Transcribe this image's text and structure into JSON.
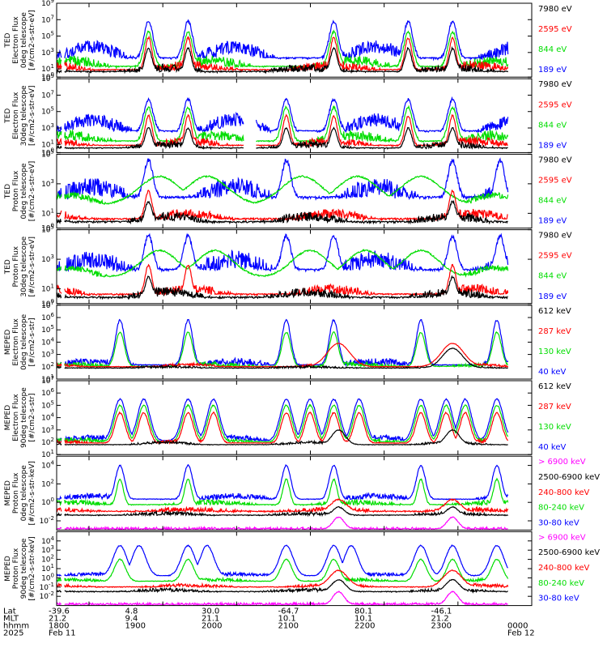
{
  "chart_data": {
    "type": "line",
    "grid": false,
    "x_ticks": [
      "1800",
      "1900",
      "2000",
      "2100",
      "2200",
      "2300",
      "0000"
    ],
    "footer": {
      "row_labels": [
        "Lat",
        "MLT",
        "hhmm",
        "2025"
      ],
      "columns": [
        [
          "-39.6",
          "21.2",
          "1800",
          "Feb 11"
        ],
        [
          "4.8",
          "9.4",
          "1900",
          ""
        ],
        [
          "30.0",
          "21.1",
          "2000",
          ""
        ],
        [
          "-64.7",
          "10.1",
          "2100",
          ""
        ],
        [
          "80.1",
          "10.1",
          "2200",
          ""
        ],
        [
          "-46.1",
          "21.2",
          "2300",
          ""
        ],
        [
          "",
          "",
          "0000",
          "Feb 12"
        ]
      ]
    },
    "panels": [
      {
        "ylabel": [
          "TED",
          "Electron Flux",
          "0deg telescope",
          "[#/cm2-s-str-eV]"
        ],
        "ylim_exp": [
          0,
          9
        ],
        "yticks": [
          0,
          1,
          3,
          5,
          7,
          9
        ],
        "legend": [
          {
            "name": "7980 eV",
            "color": "#000000"
          },
          {
            "name": "2595 eV",
            "color": "#ff0000"
          },
          {
            "name": "844 eV",
            "color": "#00dd00"
          },
          {
            "name": "189 eV",
            "color": "#0000ff"
          }
        ],
        "series": [
          {
            "color": "#0000ff",
            "base": 2.2,
            "amp": 1.5,
            "peaks": [
              5.8,
              8.3,
              17.5,
              22.2,
              25.0
            ],
            "peak_h": 6.8,
            "width": 0.4,
            "noise": 0.8
          },
          {
            "color": "#00dd00",
            "base": 1.2,
            "amp": 0.8,
            "peaks": [
              5.8,
              8.3,
              17.5,
              22.2,
              25.0
            ],
            "peak_h": 5.5,
            "width": 0.4,
            "noise": 0.6
          },
          {
            "color": "#ff0000",
            "base": 0.8,
            "amp": 0.6,
            "peaks": [
              5.8,
              8.3,
              17.5,
              22.2,
              25.0
            ],
            "peak_h": 4.8,
            "width": 0.3,
            "noise": 0.6
          },
          {
            "color": "#000000",
            "base": 0.6,
            "amp": 0.5,
            "peaks": [
              5.8,
              8.3,
              17.5,
              22.2,
              25.0
            ],
            "peak_h": 3.5,
            "width": 0.3,
            "noise": 0.5
          }
        ]
      },
      {
        "ylabel": [
          "TED",
          "Electron Flux",
          "30deg telescope",
          "[#/cm2-s-str-eV]"
        ],
        "ylim_exp": [
          0,
          9
        ],
        "yticks": [
          0,
          1,
          3,
          5,
          7,
          9
        ],
        "legend": [
          {
            "name": "7980 eV",
            "color": "#000000"
          },
          {
            "name": "2595 eV",
            "color": "#ff0000"
          },
          {
            "name": "844 eV",
            "color": "#00dd00"
          },
          {
            "name": "189 eV",
            "color": "#0000ff"
          }
        ],
        "series": [
          {
            "color": "#0000ff",
            "base": 2.5,
            "amp": 1.5,
            "peaks": [
              5.8,
              8.3,
              14.5,
              17.5,
              22.2,
              25.0
            ],
            "peak_h": 6.5,
            "width": 0.4,
            "noise": 0.8
          },
          {
            "color": "#00dd00",
            "base": 1.3,
            "amp": 0.8,
            "peaks": [
              5.8,
              8.3,
              14.5,
              17.5,
              22.2,
              25.0
            ],
            "peak_h": 5.5,
            "width": 0.4,
            "noise": 0.6
          },
          {
            "color": "#ff0000",
            "base": 0.8,
            "amp": 0.6,
            "peaks": [
              5.8,
              8.3,
              14.5,
              17.5,
              22.2,
              25.0
            ],
            "peak_h": 4.5,
            "width": 0.3,
            "noise": 0.5
          },
          {
            "color": "#000000",
            "base": 0.5,
            "amp": 0.5,
            "peaks": [
              5.8,
              8.3,
              14.5,
              17.5,
              22.2,
              25.0
            ],
            "peak_h": 3.0,
            "width": 0.3,
            "noise": 0.4
          }
        ]
      },
      {
        "ylabel": [
          "TED",
          "Proton Flux",
          "0deg telescope",
          "[#/cm2-s-str-eV]"
        ],
        "ylim_exp": [
          0,
          5
        ],
        "yticks": [
          0,
          1,
          3,
          5
        ],
        "legend": [
          {
            "name": "7980 eV",
            "color": "#000000"
          },
          {
            "name": "2595 eV",
            "color": "#ff0000"
          },
          {
            "name": "844 eV",
            "color": "#00dd00"
          },
          {
            "name": "189 eV",
            "color": "#0000ff"
          }
        ],
        "series": [
          {
            "color": "#0000ff",
            "base": 2.0,
            "amp": 0.8,
            "peaks": [
              5.8,
              14.5,
              25.0,
              28.0
            ],
            "peak_h": 4.6,
            "width": 0.4,
            "noise": 0.6
          },
          {
            "color": "#00dd00",
            "base": 1.6,
            "amp": 0.6,
            "peaks": [
              6.5,
              9.5,
              15.5,
              19.0,
              23.0
            ],
            "peak_h": 3.5,
            "width": 1.8,
            "noise": 0.2
          },
          {
            "color": "#ff0000",
            "base": 0.6,
            "amp": 0.4,
            "peaks": [
              5.8,
              25.0
            ],
            "peak_h": 2.5,
            "width": 0.3,
            "noise": 0.3
          },
          {
            "color": "#000000",
            "base": 0.4,
            "amp": 0.4,
            "peaks": [
              5.8,
              25.0
            ],
            "peak_h": 1.8,
            "width": 0.3,
            "noise": 0.3
          }
        ]
      },
      {
        "ylabel": [
          "TED",
          "Proton Flux",
          "30deg telescope",
          "[#/cm2-s-str-eV]"
        ],
        "ylim_exp": [
          0,
          5
        ],
        "yticks": [
          0,
          1,
          3,
          5
        ],
        "legend": [
          {
            "name": "7980 eV",
            "color": "#000000"
          },
          {
            "name": "2595 eV",
            "color": "#ff0000"
          },
          {
            "name": "844 eV",
            "color": "#00dd00"
          },
          {
            "name": "189 eV",
            "color": "#0000ff"
          }
        ],
        "series": [
          {
            "color": "#0000ff",
            "base": 2.2,
            "amp": 0.8,
            "peaks": [
              5.8,
              8.3,
              14.5,
              17.5,
              25.0,
              28.0
            ],
            "peak_h": 4.6,
            "width": 0.4,
            "noise": 0.6
          },
          {
            "color": "#00dd00",
            "base": 1.8,
            "amp": 0.6,
            "peaks": [
              6.5,
              10.0,
              16.0,
              19.5,
              23.0
            ],
            "peak_h": 3.6,
            "width": 1.6,
            "noise": 0.2
          },
          {
            "color": "#ff0000",
            "base": 0.6,
            "amp": 0.4,
            "peaks": [
              5.8,
              8.3,
              25.0
            ],
            "peak_h": 2.6,
            "width": 0.3,
            "noise": 0.3
          },
          {
            "color": "#000000",
            "base": 0.4,
            "amp": 0.4,
            "peaks": [
              5.8,
              25.0
            ],
            "peak_h": 1.8,
            "width": 0.3,
            "noise": 0.3
          }
        ]
      },
      {
        "ylabel": [
          "MEPED",
          "Electron Flux",
          "0deg telescope",
          "[#/cm2-s-str]"
        ],
        "ylim_exp": [
          1,
          7
        ],
        "yticks": [
          1,
          2,
          3,
          4,
          5,
          6,
          7
        ],
        "legend": [
          {
            "name": "612 keV",
            "color": "#000000"
          },
          {
            "name": "287 keV",
            "color": "#ff0000"
          },
          {
            "name": "130 keV",
            "color": "#00dd00"
          },
          {
            "name": "40 keV",
            "color": "#0000ff"
          }
        ],
        "series": [
          {
            "color": "#0000ff",
            "base": 2.1,
            "amp": 0.3,
            "peaks": [
              4.0,
              8.3,
              14.5,
              17.5,
              23.0,
              27.8
            ],
            "peak_h": 5.8,
            "width": 0.4,
            "noise": 0.3
          },
          {
            "color": "#00dd00",
            "base": 2.0,
            "amp": 0.2,
            "peaks": [
              4.0,
              8.3,
              14.5,
              17.5,
              23.0,
              27.8
            ],
            "peak_h": 4.8,
            "width": 0.4,
            "noise": 0.2
          },
          {
            "color": "#ff0000",
            "base": 2.0,
            "amp": 0.2,
            "peaks": [
              17.8,
              25.0
            ],
            "peak_h": 3.9,
            "width": 1.0,
            "noise": 0.1
          },
          {
            "color": "#000000",
            "base": 1.9,
            "amp": 0.1,
            "peaks": [
              25.0
            ],
            "peak_h": 3.5,
            "width": 0.9,
            "noise": 0.1
          }
        ]
      },
      {
        "ylabel": [
          "MEPED",
          "Electron Flux",
          "90deg telescope",
          "[#/cm2-s-str]"
        ],
        "ylim_exp": [
          1,
          7
        ],
        "yticks": [
          1,
          2,
          3,
          4,
          5,
          6,
          7
        ],
        "legend": [
          {
            "name": "612 keV",
            "color": "#000000"
          },
          {
            "name": "287 keV",
            "color": "#ff0000"
          },
          {
            "name": "130 keV",
            "color": "#00dd00"
          },
          {
            "name": "40 keV",
            "color": "#0000ff"
          }
        ],
        "series": [
          {
            "color": "#0000ff",
            "base": 2.1,
            "amp": 0.3,
            "peaks": [
              4.0,
              5.5,
              8.3,
              9.9,
              14.5,
              16.0,
              17.5,
              19.1,
              23.0,
              24.6,
              25.8,
              27.8
            ],
            "peak_h": 5.5,
            "width": 0.55,
            "noise": 0.2
          },
          {
            "color": "#00dd00",
            "base": 2.0,
            "amp": 0.2,
            "peaks": [
              4.0,
              5.5,
              8.3,
              9.9,
              14.5,
              16.0,
              17.5,
              19.1,
              23.0,
              24.6,
              25.8,
              27.8
            ],
            "peak_h": 5.0,
            "width": 0.5,
            "noise": 0.2
          },
          {
            "color": "#ff0000",
            "base": 1.9,
            "amp": 0.2,
            "peaks": [
              4.0,
              5.5,
              8.3,
              9.9,
              14.5,
              16.0,
              17.5,
              19.1,
              23.0,
              24.6,
              25.8,
              27.8
            ],
            "peak_h": 4.4,
            "width": 0.45,
            "noise": 0.2
          },
          {
            "color": "#000000",
            "base": 1.8,
            "amp": 0.2,
            "peaks": [
              17.8,
              25.0
            ],
            "peak_h": 3.0,
            "width": 0.6,
            "noise": 0.1
          }
        ]
      },
      {
        "ylabel": [
          "MEPED",
          "Proton Flux",
          "0deg telescope",
          "[#/cm2-s-str-keV]"
        ],
        "ylim_exp": [
          -3,
          5
        ],
        "yticks": [
          -2,
          0,
          2,
          4
        ],
        "legend": [
          {
            "name": "> 6900 keV",
            "color": "#ff00ff"
          },
          {
            "name": "2500-6900 keV",
            "color": "#000000"
          },
          {
            "name": "240-800 keV",
            "color": "#ff0000"
          },
          {
            "name": "80-240 keV",
            "color": "#00dd00"
          },
          {
            "name": "30-80 keV",
            "color": "#0000ff"
          }
        ],
        "series": [
          {
            "color": "#0000ff",
            "base": 0.3,
            "amp": 0.4,
            "peaks": [
              4.0,
              8.3,
              14.5,
              17.5,
              23.0,
              27.8
            ],
            "peak_h": 4.0,
            "width": 0.4,
            "noise": 0.3
          },
          {
            "color": "#00dd00",
            "base": -0.3,
            "amp": 0.3,
            "peaks": [
              4.0,
              8.3,
              14.5,
              17.5,
              23.0,
              27.8
            ],
            "peak_h": 2.5,
            "width": 0.3,
            "noise": 0.3
          },
          {
            "color": "#ff0000",
            "base": -1.0,
            "amp": 0.2,
            "peaks": [
              17.8,
              25.0
            ],
            "peak_h": 0.3,
            "width": 0.7,
            "noise": 0.3
          },
          {
            "color": "#000000",
            "base": -1.4,
            "amp": 0.2,
            "peaks": [
              17.8,
              25.0
            ],
            "peak_h": -0.5,
            "width": 0.5,
            "noise": 0.2
          },
          {
            "color": "#ff00ff",
            "base": -2.9,
            "amp": 0.0,
            "peaks": [
              17.8,
              25.0
            ],
            "peak_h": -1.6,
            "width": 0.5,
            "noise": 0.2
          }
        ]
      },
      {
        "ylabel": [
          "MEPED",
          "Proton Flux",
          "90deg telescope",
          "[#/cm2-s-str-keV]"
        ],
        "ylim_exp": [
          -3,
          5
        ],
        "yticks": [
          -2,
          -1,
          0,
          1,
          2,
          3,
          4
        ],
        "legend": [
          {
            "name": "> 6900 keV",
            "color": "#ff00ff"
          },
          {
            "name": "2500-6900 keV",
            "color": "#000000"
          },
          {
            "name": "240-800 keV",
            "color": "#ff0000"
          },
          {
            "name": "80-240 keV",
            "color": "#00dd00"
          },
          {
            "name": "30-80 keV",
            "color": "#0000ff"
          }
        ],
        "series": [
          {
            "color": "#0000ff",
            "base": 0.2,
            "amp": 0.2,
            "peaks": [
              4.0,
              5.2,
              8.3,
              9.5,
              14.5,
              17.5,
              18.6,
              23.0,
              25.0,
              27.8
            ],
            "peak_h": 3.5,
            "width": 0.6,
            "noise": 0.2
          },
          {
            "color": "#00dd00",
            "base": -0.4,
            "amp": 0.2,
            "peaks": [
              4.0,
              8.3,
              14.5,
              17.5,
              23.0,
              25.0,
              27.8
            ],
            "peak_h": 2.0,
            "width": 0.5,
            "noise": 0.2
          },
          {
            "color": "#ff0000",
            "base": -1.0,
            "amp": 0.2,
            "peaks": [
              17.8,
              25.0
            ],
            "peak_h": 0.8,
            "width": 0.8,
            "noise": 0.2
          },
          {
            "color": "#000000",
            "base": -1.5,
            "amp": 0.2,
            "peaks": [
              17.8,
              25.0
            ],
            "peak_h": -0.2,
            "width": 0.6,
            "noise": 0.2
          },
          {
            "color": "#ff00ff",
            "base": -2.9,
            "amp": 0.0,
            "peaks": [
              17.8,
              25.0
            ],
            "peak_h": -1.5,
            "width": 0.5,
            "noise": 0.2
          }
        ]
      }
    ]
  }
}
